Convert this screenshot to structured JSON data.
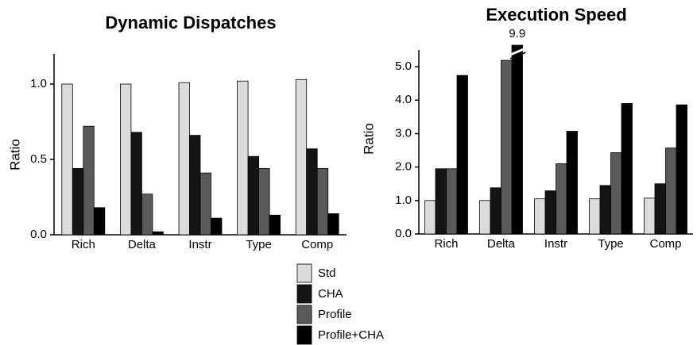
{
  "chart_data": [
    {
      "type": "bar",
      "title": "Dynamic Dispatches",
      "y_label": "Ratio",
      "categories": [
        "Rich",
        "Delta",
        "Instr",
        "Type",
        "Comp"
      ],
      "series": [
        {
          "name": "Std",
          "color": "#dcdcdc",
          "values": [
            1.0,
            1.0,
            1.01,
            1.02,
            1.03
          ]
        },
        {
          "name": "CHA",
          "color": "#141414",
          "values": [
            0.44,
            0.68,
            0.66,
            0.52,
            0.57
          ]
        },
        {
          "name": "Profile",
          "color": "#5a5a5a",
          "values": [
            0.72,
            0.27,
            0.41,
            0.44,
            0.44
          ]
        },
        {
          "name": "Profile+CHA",
          "color": "#000000",
          "values": [
            0.18,
            0.02,
            0.11,
            0.13,
            0.14
          ]
        }
      ],
      "ylim": [
        0,
        1.2
      ],
      "yticks": [
        {
          "value": 0,
          "label": "0.0"
        },
        0.5,
        {
          "value": 1,
          "label": "1.0"
        }
      ]
    },
    {
      "type": "bar",
      "title": "Execution Speed",
      "y_label": "Ratio",
      "categories": [
        "Rich",
        "Delta",
        "Instr",
        "Type",
        "Comp"
      ],
      "series": [
        {
          "name": "Std",
          "color": "#dcdcdc",
          "values": [
            1.0,
            1.0,
            1.05,
            1.05,
            1.07
          ]
        },
        {
          "name": "CHA",
          "color": "#141414",
          "values": [
            1.95,
            1.38,
            1.29,
            1.45,
            1.5
          ]
        },
        {
          "name": "Profile",
          "color": "#5a5a5a",
          "values": [
            1.95,
            5.19,
            2.1,
            2.43,
            2.57
          ]
        },
        {
          "name": "Profile+CHA",
          "color": "#000000",
          "values": [
            4.74,
            9.9,
            3.07,
            3.9,
            3.86
          ],
          "value_labels": [
            null,
            "9.9",
            null,
            null,
            null
          ]
        }
      ],
      "ylim": [
        0,
        5.5
      ],
      "yticks": [
        {
          "value": 0,
          "label": "0.0"
        },
        {
          "value": 1,
          "label": "1.0"
        },
        {
          "value": 2,
          "label": "2.0"
        },
        {
          "value": 3,
          "label": "3.0"
        },
        {
          "value": 4,
          "label": "4.0"
        },
        {
          "value": 5,
          "label": "5.0"
        }
      ]
    }
  ]
}
